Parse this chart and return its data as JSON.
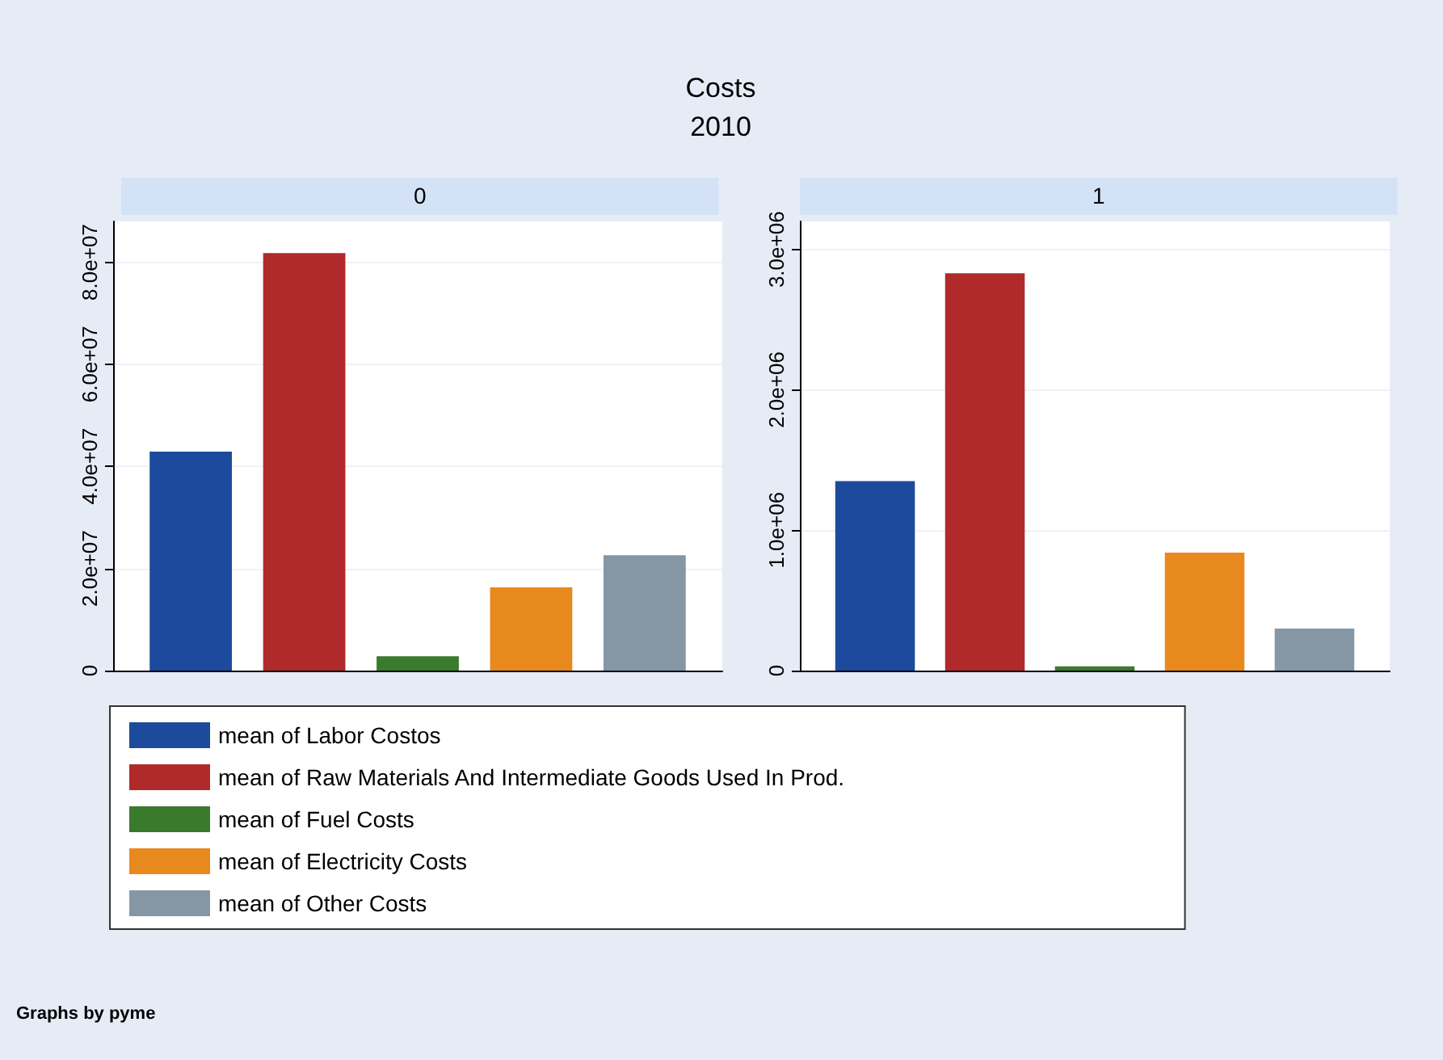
{
  "chart_data": [
    {
      "type": "bar",
      "title": "0",
      "categories": [
        null
      ],
      "series": [
        {
          "name": "mean of Labor Costos",
          "color": "#1c4a9c",
          "values": [
            42900000
          ]
        },
        {
          "name": "mean of Raw Materials And Intermediate Goods Used In Prod.",
          "color": "#b02a2c",
          "values": [
            81800000
          ]
        },
        {
          "name": "mean of Fuel Costs",
          "color": "#3a7a2c",
          "values": [
            2800000
          ]
        },
        {
          "name": "mean of Electricity Costs",
          "color": "#e8891e",
          "values": [
            16300000
          ]
        },
        {
          "name": "mean of Other Costs",
          "color": "#8596a4",
          "values": [
            22600000
          ]
        }
      ],
      "ylim": [
        0,
        88000000
      ],
      "yticks": [
        0,
        {
          "value": 20000000,
          "label": "2.0e+07"
        },
        {
          "value": 40000000,
          "label": "4.0e+07"
        },
        {
          "value": 60000000,
          "label": "6.0e+07"
        },
        {
          "value": 80000000,
          "label": "8.0e+07"
        }
      ],
      "grid": "y",
      "legend": "bottom",
      "annotations": [
        "Costs",
        "2010",
        "Graphs by pyme"
      ]
    },
    {
      "type": "bar",
      "title": "1",
      "categories": [
        null
      ],
      "series": [
        {
          "color": "#1c4a9c",
          "values": [
            1350000
          ]
        },
        {
          "color": "#b02a2c",
          "values": [
            2830000
          ]
        },
        {
          "color": "#3a7a2c",
          "values": [
            30000
          ]
        },
        {
          "color": "#e8891e",
          "values": [
            840000
          ]
        },
        {
          "color": "#8596a4",
          "values": [
            300000
          ]
        }
      ],
      "ylim": [
        0,
        3200000
      ],
      "yticks": [
        0,
        {
          "value": 1000000,
          "label": "1.0e+06"
        },
        {
          "value": 2000000,
          "label": "2.0e+06"
        },
        {
          "value": 3000000,
          "label": "3.0e+06"
        }
      ],
      "grid": "y",
      "legend": false
    }
  ]
}
